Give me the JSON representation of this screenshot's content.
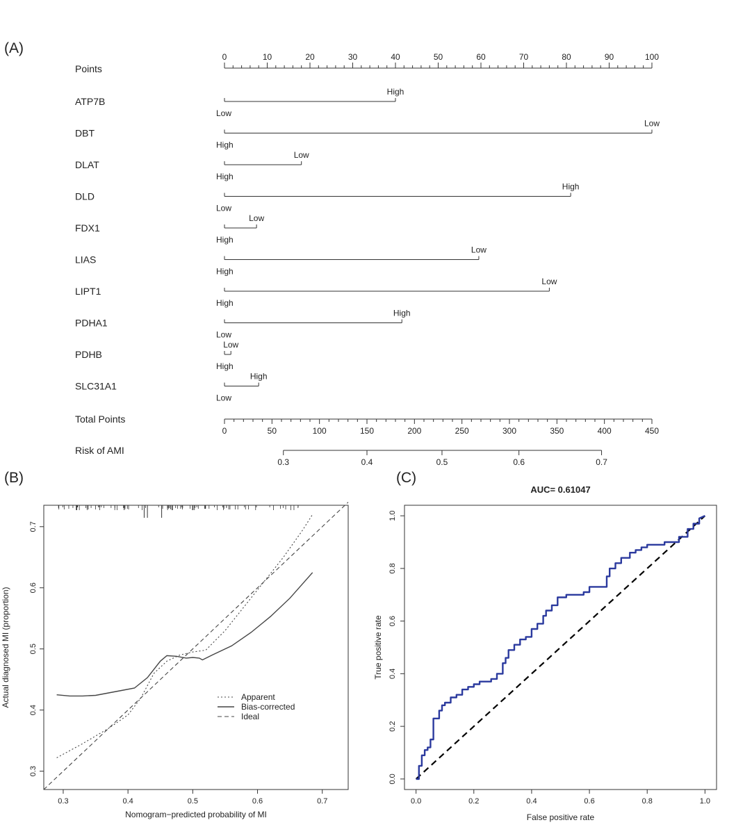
{
  "panel_labels": {
    "a": "(A)",
    "b": "(B)",
    "c": "(C)"
  },
  "chart_data": [
    {
      "type": "nomogram",
      "points_label": "Points",
      "points_ticks": [
        0,
        10,
        20,
        30,
        40,
        50,
        60,
        70,
        80,
        90,
        100
      ],
      "variables": [
        {
          "name": "ATP7B",
          "points": 40,
          "at_zero": "Low",
          "at_end": "High"
        },
        {
          "name": "DBT",
          "points": 100,
          "at_zero": "High",
          "at_end": "Low"
        },
        {
          "name": "DLAT",
          "points": 18,
          "at_zero": "High",
          "at_end": "Low"
        },
        {
          "name": "DLD",
          "points": 81,
          "at_zero": "Low",
          "at_end": "High"
        },
        {
          "name": "FDX1",
          "points": 7.5,
          "at_zero": "High",
          "at_end": "Low"
        },
        {
          "name": "LIAS",
          "points": 59.5,
          "at_zero": "High",
          "at_end": "Low"
        },
        {
          "name": "LIPT1",
          "points": 76,
          "at_zero": "High",
          "at_end": "Low"
        },
        {
          "name": "PDHA1",
          "points": 41.5,
          "at_zero": "Low",
          "at_end": "High"
        },
        {
          "name": "PDHB",
          "points": 1.5,
          "at_zero": "High",
          "at_end": "Low"
        },
        {
          "name": "SLC31A1",
          "points": 8,
          "at_zero": "Low",
          "at_end": "High"
        }
      ],
      "total_points_label": "Total Points",
      "total_points_ticks": [
        0,
        50,
        100,
        150,
        200,
        250,
        300,
        350,
        400,
        450
      ],
      "risk_label": "Risk of AMI",
      "risk_ticks": [
        {
          "label": "0.3",
          "total_points": 62
        },
        {
          "label": "0.4",
          "total_points": 150
        },
        {
          "label": "0.5",
          "total_points": 229
        },
        {
          "label": "0.6",
          "total_points": 310
        },
        {
          "label": "0.7",
          "total_points": 397
        }
      ]
    },
    {
      "type": "line",
      "xlabel": "Nomogram−predicted probability of MI",
      "ylabel": "Actual diagnosed MI (proportion)",
      "xlim": [
        0.27,
        0.74
      ],
      "ylim": [
        0.27,
        0.735
      ],
      "xticks": [
        0.3,
        0.4,
        0.5,
        0.6,
        0.7
      ],
      "yticks": [
        0.3,
        0.4,
        0.5,
        0.6,
        0.7
      ],
      "series": [
        {
          "name": "Apparent",
          "style": "dotted",
          "x": [
            0.29,
            0.33,
            0.37,
            0.4,
            0.42,
            0.44,
            0.46,
            0.48,
            0.5,
            0.52,
            0.55,
            0.58,
            0.61,
            0.64,
            0.67,
            0.685
          ],
          "y": [
            0.322,
            0.345,
            0.37,
            0.392,
            0.42,
            0.46,
            0.48,
            0.49,
            0.495,
            0.498,
            0.53,
            0.57,
            0.61,
            0.65,
            0.695,
            0.72
          ]
        },
        {
          "name": "Bias-corrected",
          "style": "solid",
          "x": [
            0.29,
            0.31,
            0.33,
            0.35,
            0.37,
            0.39,
            0.41,
            0.43,
            0.45,
            0.46,
            0.475,
            0.49,
            0.5,
            0.51,
            0.515,
            0.53,
            0.56,
            0.59,
            0.62,
            0.65,
            0.685
          ],
          "y": [
            0.425,
            0.423,
            0.423,
            0.424,
            0.428,
            0.432,
            0.436,
            0.453,
            0.48,
            0.489,
            0.488,
            0.485,
            0.486,
            0.485,
            0.482,
            0.49,
            0.505,
            0.527,
            0.553,
            0.583,
            0.625
          ]
        },
        {
          "name": "Ideal",
          "style": "dashed",
          "x": [
            0.27,
            0.74
          ],
          "y": [
            0.27,
            0.74
          ]
        }
      ],
      "legend_position": "bottom-right"
    },
    {
      "type": "line",
      "title": "AUC= 0.61047",
      "xlabel": "False positive rate",
      "ylabel": "True positive rate",
      "xlim": [
        -0.04,
        1.04
      ],
      "ylim": [
        -0.04,
        1.04
      ],
      "xticks": [
        0.0,
        0.2,
        0.4,
        0.6,
        0.8,
        1.0
      ],
      "yticks": [
        0.0,
        0.2,
        0.4,
        0.6,
        0.8,
        1.0
      ],
      "series": [
        {
          "color": "#2b3a9e",
          "x": [
            0,
            0.01,
            0.01,
            0.02,
            0.02,
            0.03,
            0.03,
            0.04,
            0.04,
            0.05,
            0.05,
            0.06,
            0.06,
            0.07,
            0.07,
            0.08,
            0.08,
            0.09,
            0.09,
            0.1,
            0.1,
            0.12,
            0.12,
            0.14,
            0.14,
            0.16,
            0.16,
            0.18,
            0.18,
            0.2,
            0.2,
            0.22,
            0.22,
            0.26,
            0.26,
            0.28,
            0.28,
            0.3,
            0.3,
            0.31,
            0.31,
            0.32,
            0.32,
            0.34,
            0.34,
            0.36,
            0.36,
            0.38,
            0.38,
            0.4,
            0.4,
            0.42,
            0.42,
            0.44,
            0.44,
            0.45,
            0.45,
            0.47,
            0.47,
            0.49,
            0.49,
            0.52,
            0.52,
            0.54,
            0.54,
            0.58,
            0.58,
            0.6,
            0.6,
            0.66,
            0.66,
            0.67,
            0.67,
            0.69,
            0.69,
            0.71,
            0.71,
            0.74,
            0.74,
            0.76,
            0.76,
            0.78,
            0.78,
            0.8,
            0.8,
            0.86,
            0.86,
            0.91,
            0.91,
            0.94,
            0.94,
            0.96,
            0.96,
            0.98,
            0.98,
            1.0
          ],
          "y": [
            0,
            0,
            0.05,
            0.05,
            0.09,
            0.09,
            0.11,
            0.11,
            0.12,
            0.12,
            0.15,
            0.15,
            0.23,
            0.23,
            0.23,
            0.23,
            0.26,
            0.26,
            0.28,
            0.28,
            0.29,
            0.29,
            0.31,
            0.31,
            0.32,
            0.32,
            0.34,
            0.34,
            0.35,
            0.35,
            0.36,
            0.36,
            0.37,
            0.37,
            0.38,
            0.38,
            0.4,
            0.4,
            0.44,
            0.44,
            0.46,
            0.46,
            0.49,
            0.49,
            0.51,
            0.51,
            0.53,
            0.53,
            0.54,
            0.54,
            0.57,
            0.57,
            0.59,
            0.59,
            0.62,
            0.62,
            0.64,
            0.64,
            0.66,
            0.66,
            0.69,
            0.69,
            0.7,
            0.7,
            0.7,
            0.7,
            0.71,
            0.71,
            0.73,
            0.73,
            0.77,
            0.77,
            0.8,
            0.8,
            0.82,
            0.82,
            0.84,
            0.84,
            0.86,
            0.86,
            0.87,
            0.87,
            0.88,
            0.88,
            0.89,
            0.89,
            0.9,
            0.9,
            0.92,
            0.92,
            0.95,
            0.95,
            0.97,
            0.97,
            0.99,
            1.0
          ]
        },
        {
          "style": "dashed",
          "color": "#000000",
          "x": [
            0,
            1
          ],
          "y": [
            0,
            1
          ]
        }
      ]
    }
  ]
}
